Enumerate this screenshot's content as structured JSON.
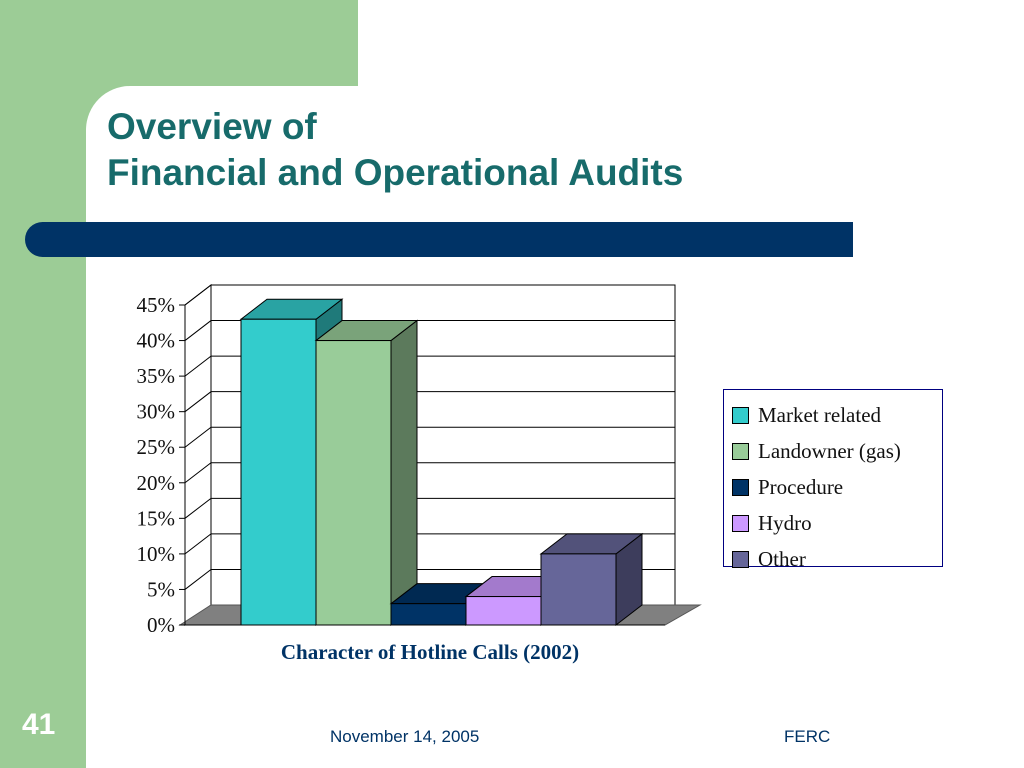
{
  "slide": {
    "title_line1": "Overview of",
    "title_line2": "Financial and Operational Audits",
    "slide_number": "41",
    "footer_date": "November 14, 2005",
    "footer_org": "FERC"
  },
  "colors": {
    "background_green": "#9ccc96",
    "title_teal": "#176b6b",
    "accent_navy": "#003366"
  },
  "chart_data": {
    "type": "bar",
    "three_d": true,
    "xlabel": "Character of Hotline Calls (2002)",
    "ylabel": "",
    "ylim": [
      0,
      45
    ],
    "yticks": [
      0,
      5,
      10,
      15,
      20,
      25,
      30,
      35,
      40,
      45
    ],
    "ytick_labels": [
      "0%",
      "5%",
      "10%",
      "15%",
      "20%",
      "25%",
      "30%",
      "35%",
      "40%",
      "45%"
    ],
    "grid": true,
    "legend_position": "right",
    "series": [
      {
        "name": "Market related",
        "values": [
          43
        ],
        "color": "#33cccc"
      },
      {
        "name": "Landowner (gas)",
        "values": [
          40
        ],
        "color": "#99cc99"
      },
      {
        "name": "Procedure",
        "values": [
          3
        ],
        "color": "#003366"
      },
      {
        "name": "Hydro",
        "values": [
          4
        ],
        "color": "#cc99ff"
      },
      {
        "name": "Other",
        "values": [
          10
        ],
        "color": "#666699"
      }
    ]
  }
}
